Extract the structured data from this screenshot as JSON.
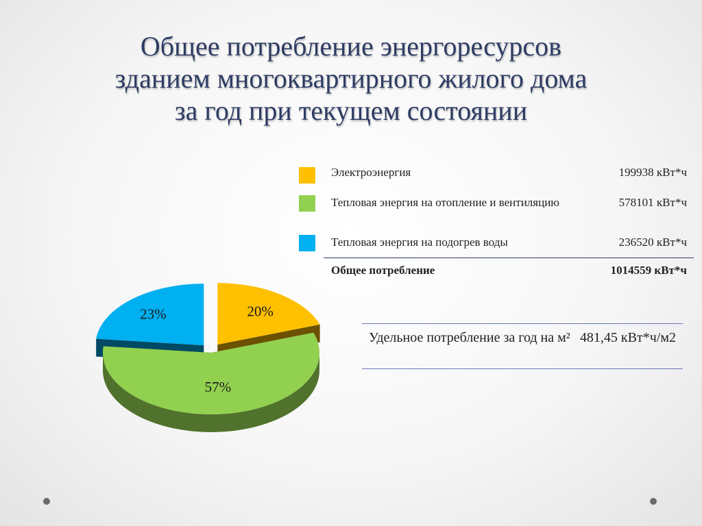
{
  "title": {
    "line1": "Общее потребление энергоресурсов",
    "line2": "зданием многоквартирного жилого дома",
    "line3": "за год при текущем состоянии"
  },
  "legend": {
    "rows": [
      {
        "label": "Электроэнергия",
        "value": "199938 кВт*ч",
        "color": "#ffc000"
      },
      {
        "label": "Тепловая энергия на отопление и вентиляцию",
        "value": "578101 кВт*ч",
        "color": "#92d050"
      },
      {
        "label": "Тепловая энергия на подогрев воды",
        "value": "236520 кВт*ч",
        "color": "#00b0f0"
      }
    ],
    "total": {
      "label": "Общее потребление",
      "value": "1014559 кВт*ч"
    }
  },
  "specific": {
    "label": "Удельное потребление за год на м²",
    "value": "481,45 кВт*ч/м2"
  },
  "chart_data": {
    "type": "pie",
    "title": "",
    "categories": [
      "Электроэнергия",
      "Тепловая энергия на отопление и вентиляцию",
      "Тепловая энергия на подогрев воды"
    ],
    "values": [
      199938,
      578101,
      236520
    ],
    "percent_labels": [
      "20%",
      "57%",
      "23%"
    ],
    "colors": [
      "#ffc000",
      "#92d050",
      "#00b0f0"
    ],
    "style": "3d-exploded"
  }
}
